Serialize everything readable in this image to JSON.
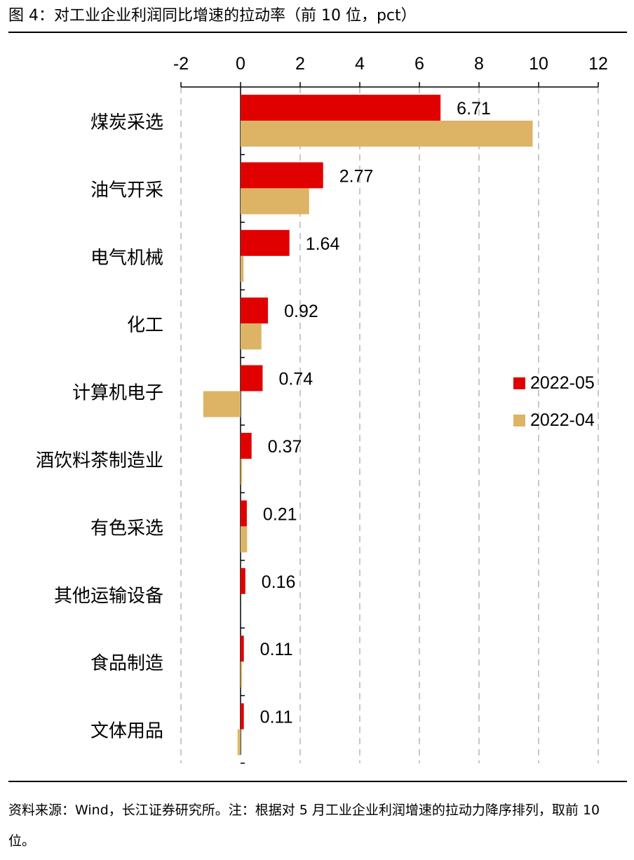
{
  "figure": {
    "title": "图 4：对工业企业利润同比增速的拉动率（前 10 位，pct）",
    "source_note": "资料来源：Wind，长江证券研究所。注：根据对 5 月工业企业利润增速的拉动力降序排列，取前 10 位。"
  },
  "chart_data": {
    "type": "bar",
    "orientation": "horizontal",
    "title": "图 4：对工业企业利润同比增速的拉动率（前 10 位，pct）",
    "categories": [
      "煤炭采选",
      "油气开采",
      "电气机械",
      "化工",
      "计算机电子",
      "酒饮料茶制造业",
      "有色采选",
      "其他运输设备",
      "食品制造",
      "文体用品"
    ],
    "series": [
      {
        "name": "2022-05",
        "color": "#E00000",
        "values": [
          6.71,
          2.77,
          1.64,
          0.92,
          0.74,
          0.37,
          0.21,
          0.16,
          0.11,
          0.11
        ],
        "data_labels": [
          "6.71",
          "2.77",
          "1.64",
          "0.92",
          "0.74",
          "0.37",
          "0.21",
          "0.16",
          "0.11",
          "0.11"
        ]
      },
      {
        "name": "2022-04",
        "color": "#DDB365",
        "values": [
          9.8,
          2.3,
          0.1,
          0.7,
          -1.25,
          0.05,
          0.22,
          0.0,
          0.05,
          -0.1
        ]
      }
    ],
    "xlim": [
      -2,
      12
    ],
    "xticks": [
      "-2",
      "0",
      "2",
      "4",
      "6",
      "8",
      "10",
      "12"
    ],
    "xtick_values": [
      -2,
      0,
      2,
      4,
      6,
      8,
      10,
      12
    ],
    "x_axis_position": "top",
    "grid": "vertical dashed",
    "legend_position": "right"
  }
}
